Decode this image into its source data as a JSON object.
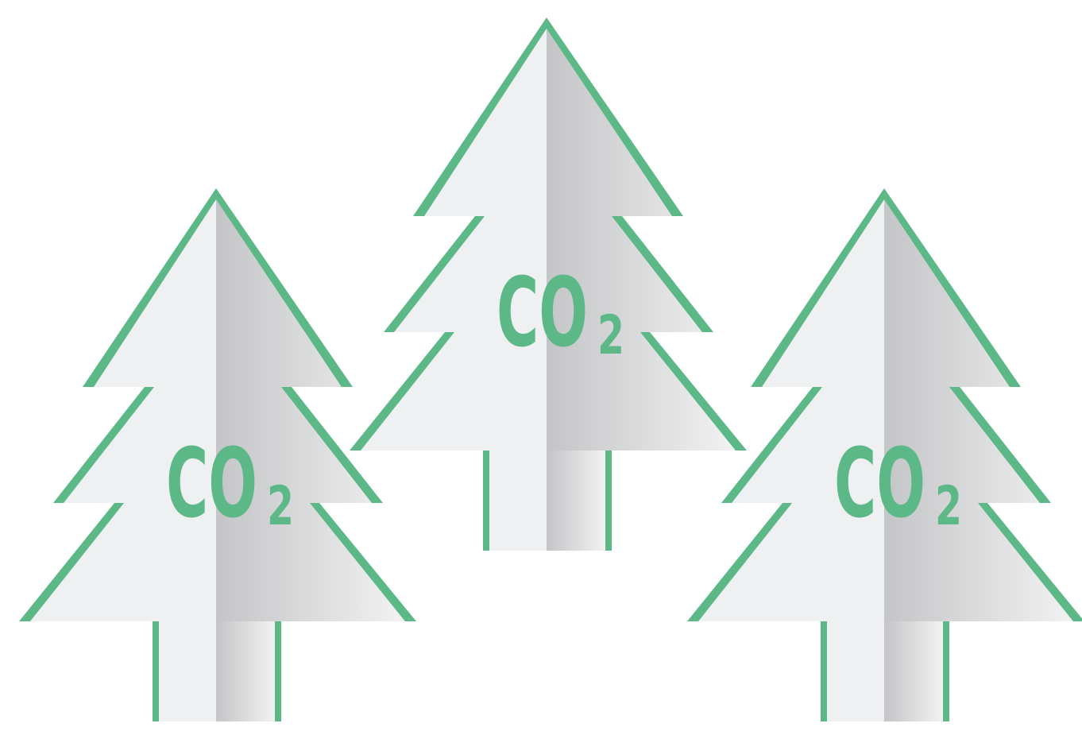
{
  "trees": [
    {
      "label": {
        "text": "CO",
        "subscript": "2"
      }
    },
    {
      "label": {
        "text": "CO",
        "subscript": "2"
      }
    },
    {
      "label": {
        "text": "CO",
        "subscript": "2"
      }
    }
  ]
}
